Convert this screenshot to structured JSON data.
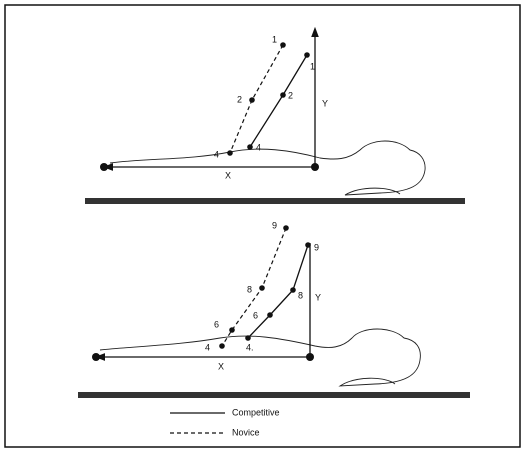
{
  "panels": [
    {
      "labels": [
        "1",
        "1",
        "2",
        "2",
        "4",
        "4",
        "Y",
        "X"
      ]
    },
    {
      "labels": [
        "9",
        "9",
        "8",
        "8",
        "6",
        "6",
        "4",
        "4.",
        "Y",
        "X"
      ]
    }
  ],
  "legend": [
    "Competitive",
    "Novice"
  ]
}
